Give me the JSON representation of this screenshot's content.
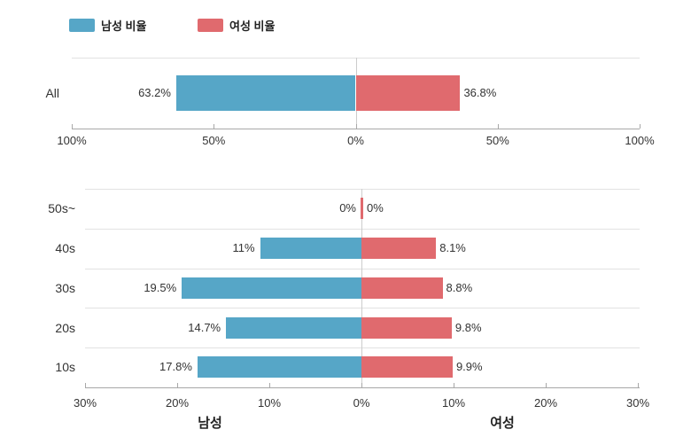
{
  "legend": {
    "items": [
      {
        "label": "남성 비율",
        "color": "#56A6C7"
      },
      {
        "label": "여성 비율",
        "color": "#E06A6E"
      }
    ]
  },
  "colors": {
    "male": "#56A6C7",
    "female": "#E06A6E",
    "gridline": "#E2E2E2",
    "axis_line": "#A8A8A8",
    "zero_line": "#CCCCCC",
    "text": "#333333"
  },
  "chart_data": [
    {
      "type": "bar",
      "subtype": "diverging-horizontal",
      "title": "",
      "categories": [
        "All"
      ],
      "series": [
        {
          "name": "남성 비율",
          "side": "left",
          "color": "#56A6C7",
          "values": [
            63.2
          ],
          "labels": [
            "63.2%"
          ]
        },
        {
          "name": "여성 비율",
          "side": "right",
          "color": "#E06A6E",
          "values": [
            36.8
          ],
          "labels": [
            "36.8%"
          ]
        }
      ],
      "x_ticks": [
        {
          "value": -100,
          "label": "100%"
        },
        {
          "value": -50,
          "label": "50%"
        },
        {
          "value": 0,
          "label": "0%"
        },
        {
          "value": 50,
          "label": "50%"
        },
        {
          "value": 100,
          "label": "100%"
        }
      ],
      "xlim": [
        -100,
        100
      ],
      "grid": true,
      "legend_position": "top-left"
    },
    {
      "type": "bar",
      "subtype": "diverging-horizontal",
      "title": "",
      "categories": [
        "50s~",
        "40s",
        "30s",
        "20s",
        "10s"
      ],
      "series": [
        {
          "name": "남성 비율",
          "side": "left",
          "color": "#56A6C7",
          "values": [
            0,
            11,
            19.5,
            14.7,
            17.8
          ],
          "labels": [
            "0%",
            "11%",
            "19.5%",
            "14.7%",
            "17.8%"
          ]
        },
        {
          "name": "여성 비율",
          "side": "right",
          "color": "#E06A6E",
          "values": [
            0,
            8.1,
            8.8,
            9.8,
            9.9
          ],
          "labels": [
            "0%",
            "8.1%",
            "8.8%",
            "9.8%",
            "9.9%"
          ]
        }
      ],
      "x_ticks": [
        {
          "value": -30,
          "label": "30%"
        },
        {
          "value": -20,
          "label": "20%"
        },
        {
          "value": -10,
          "label": "10%"
        },
        {
          "value": 0,
          "label": "0%"
        },
        {
          "value": 10,
          "label": "10%"
        },
        {
          "value": 20,
          "label": "20%"
        },
        {
          "value": 30,
          "label": "30%"
        }
      ],
      "xlim": [
        -30,
        30
      ],
      "xlabel_left": "남성",
      "xlabel_right": "여성",
      "grid": true
    }
  ]
}
